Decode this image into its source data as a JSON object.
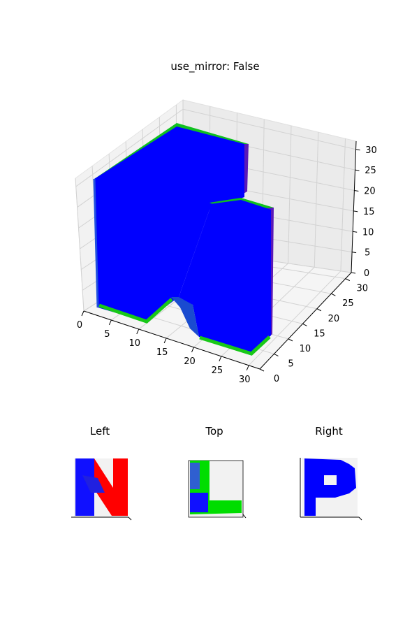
{
  "chart_data": [
    {
      "type": "voxel-3d",
      "title": "use_mirror: False",
      "x_ticks": [
        "0",
        "5",
        "10",
        "15",
        "20",
        "25",
        "30"
      ],
      "y_ticks": [
        "0",
        "5",
        "10",
        "15",
        "20",
        "25",
        "30"
      ],
      "z_ticks": [
        "0",
        "5",
        "10",
        "15",
        "20",
        "25",
        "30"
      ],
      "xlim": [
        0,
        32
      ],
      "ylim": [
        0,
        32
      ],
      "zlim": [
        0,
        32
      ],
      "grid": true,
      "colors": {
        "face_front": "#0000ff",
        "face_top": "#00dd00",
        "face_side": "#7000c0",
        "pane": "#f2f2f2",
        "grid": "#d0d0d0"
      }
    },
    {
      "type": "projection",
      "title": "Left",
      "shape": "N",
      "colors": [
        "#0000ff",
        "#ff0000",
        "#00c000"
      ]
    },
    {
      "type": "projection",
      "title": "Top",
      "shape": "L",
      "colors": [
        "#0000ff",
        "#00e000"
      ]
    },
    {
      "type": "projection",
      "title": "Right",
      "shape": "P",
      "colors": [
        "#0000ff"
      ]
    }
  ]
}
